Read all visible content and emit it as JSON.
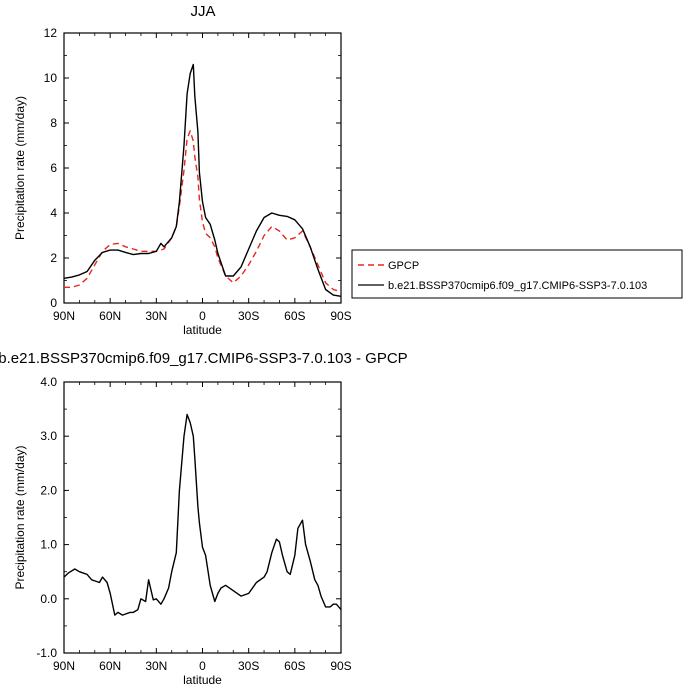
{
  "chart_data": [
    {
      "type": "line",
      "title": "JJA",
      "xlabel": "latitude",
      "ylabel": "Precipitation rate (mm/day)",
      "xlim": [
        90,
        -90
      ],
      "ylim": [
        0,
        12
      ],
      "xticks": [
        90,
        60,
        30,
        0,
        -30,
        -60,
        -90
      ],
      "xtick_labels": [
        "90N",
        "60N",
        "30N",
        "0",
        "30S",
        "60S",
        "90S"
      ],
      "yticks": [
        0,
        2,
        4,
        6,
        8,
        10,
        12
      ],
      "ytick_labels": [
        "0",
        "2",
        "4",
        "6",
        "8",
        "10",
        "12"
      ],
      "grid": false,
      "legend_position": "right",
      "series": [
        {
          "name": "GPCP",
          "color": "#e8261d",
          "dash": "dashed",
          "x": [
            90,
            85,
            80,
            75,
            70,
            65,
            60,
            55,
            50,
            45,
            40,
            35,
            30,
            25,
            20,
            17,
            15,
            12,
            10,
            8,
            6,
            5,
            3,
            2,
            0,
            -2,
            -5,
            -8,
            -10,
            -15,
            -20,
            -25,
            -30,
            -35,
            -40,
            -45,
            -50,
            -55,
            -60,
            -65,
            -70,
            -75,
            -80,
            -85,
            -90
          ],
          "values": [
            0.7,
            0.7,
            0.8,
            1.1,
            1.7,
            2.3,
            2.6,
            2.65,
            2.5,
            2.4,
            2.3,
            2.3,
            2.3,
            2.4,
            2.9,
            3.4,
            4.3,
            5.9,
            7.3,
            7.65,
            7.2,
            6.5,
            5.6,
            4.6,
            3.6,
            3.1,
            2.9,
            2.5,
            2.0,
            1.2,
            0.9,
            1.2,
            1.7,
            2.3,
            3.0,
            3.4,
            3.2,
            2.8,
            2.9,
            3.2,
            2.5,
            1.7,
            0.9,
            0.6,
            0.5
          ]
        },
        {
          "name": "b.e21.BSSP370cmip6.f09_g17.CMIP6-SSP3-7.0.103",
          "color": "#000000",
          "dash": "solid",
          "x": [
            90,
            85,
            80,
            75,
            70,
            65,
            60,
            55,
            50,
            45,
            40,
            35,
            30,
            27,
            25,
            20,
            17,
            15,
            12,
            10,
            8,
            6,
            5,
            3,
            2,
            0,
            -2,
            -5,
            -8,
            -10,
            -15,
            -20,
            -25,
            -30,
            -35,
            -40,
            -45,
            -50,
            -55,
            -60,
            -65,
            -70,
            -75,
            -80,
            -85,
            -90
          ],
          "values": [
            1.1,
            1.15,
            1.25,
            1.4,
            1.9,
            2.25,
            2.35,
            2.35,
            2.25,
            2.15,
            2.2,
            2.2,
            2.3,
            2.65,
            2.5,
            2.9,
            3.4,
            4.5,
            7.0,
            9.3,
            10.2,
            10.6,
            9.2,
            7.6,
            5.8,
            4.5,
            3.8,
            3.5,
            2.8,
            2.2,
            1.2,
            1.2,
            1.6,
            2.4,
            3.2,
            3.8,
            4.0,
            3.9,
            3.85,
            3.7,
            3.3,
            2.5,
            1.5,
            0.6,
            0.35,
            0.3
          ]
        }
      ]
    },
    {
      "type": "line",
      "title": "b.e21.BSSP370cmip6.f09_g17.CMIP6-SSP3-7.0.103 - GPCP",
      "xlabel": "latitude",
      "ylabel": "Precipitation rate (mm/day)",
      "xlim": [
        90,
        -90
      ],
      "ylim": [
        -1,
        4
      ],
      "xticks": [
        90,
        60,
        30,
        0,
        -30,
        -60,
        -90
      ],
      "xtick_labels": [
        "90N",
        "60N",
        "30N",
        "0",
        "30S",
        "60S",
        "90S"
      ],
      "yticks": [
        -1,
        0,
        1,
        2,
        3,
        4
      ],
      "ytick_labels": [
        "-1.0",
        "0.0",
        "1.0",
        "2.0",
        "3.0",
        "4.0"
      ],
      "grid": false,
      "series": [
        {
          "color": "#000000",
          "dash": "solid",
          "x": [
            90,
            87,
            83,
            80,
            77,
            75,
            72,
            70,
            67,
            65,
            62,
            60,
            57,
            55,
            52,
            50,
            47,
            45,
            42,
            40,
            37,
            35,
            32,
            30,
            27,
            25,
            22,
            20,
            17,
            15,
            12,
            10,
            8,
            6,
            5,
            3,
            2,
            0,
            -2,
            -5,
            -8,
            -10,
            -12,
            -15,
            -20,
            -25,
            -30,
            -35,
            -40,
            -42,
            -45,
            -48,
            -50,
            -52,
            -55,
            -57,
            -60,
            -62,
            -65,
            -67,
            -70,
            -73,
            -75,
            -77,
            -80,
            -83,
            -85,
            -87,
            -90
          ],
          "values": [
            0.4,
            0.48,
            0.55,
            0.5,
            0.47,
            0.45,
            0.35,
            0.33,
            0.3,
            0.4,
            0.3,
            0.1,
            -0.3,
            -0.25,
            -0.3,
            -0.28,
            -0.25,
            -0.25,
            -0.2,
            0.0,
            -0.05,
            0.35,
            -0.02,
            0.0,
            -0.1,
            0.0,
            0.2,
            0.5,
            0.85,
            2.0,
            3.0,
            3.4,
            3.25,
            3.0,
            2.6,
            1.7,
            1.4,
            0.95,
            0.8,
            0.25,
            -0.05,
            0.1,
            0.2,
            0.25,
            0.15,
            0.05,
            0.1,
            0.3,
            0.4,
            0.5,
            0.85,
            1.1,
            1.05,
            0.8,
            0.5,
            0.45,
            0.8,
            1.3,
            1.45,
            1.0,
            0.7,
            0.35,
            0.25,
            0.05,
            -0.15,
            -0.15,
            -0.1,
            -0.1,
            -0.2
          ]
        }
      ]
    }
  ]
}
